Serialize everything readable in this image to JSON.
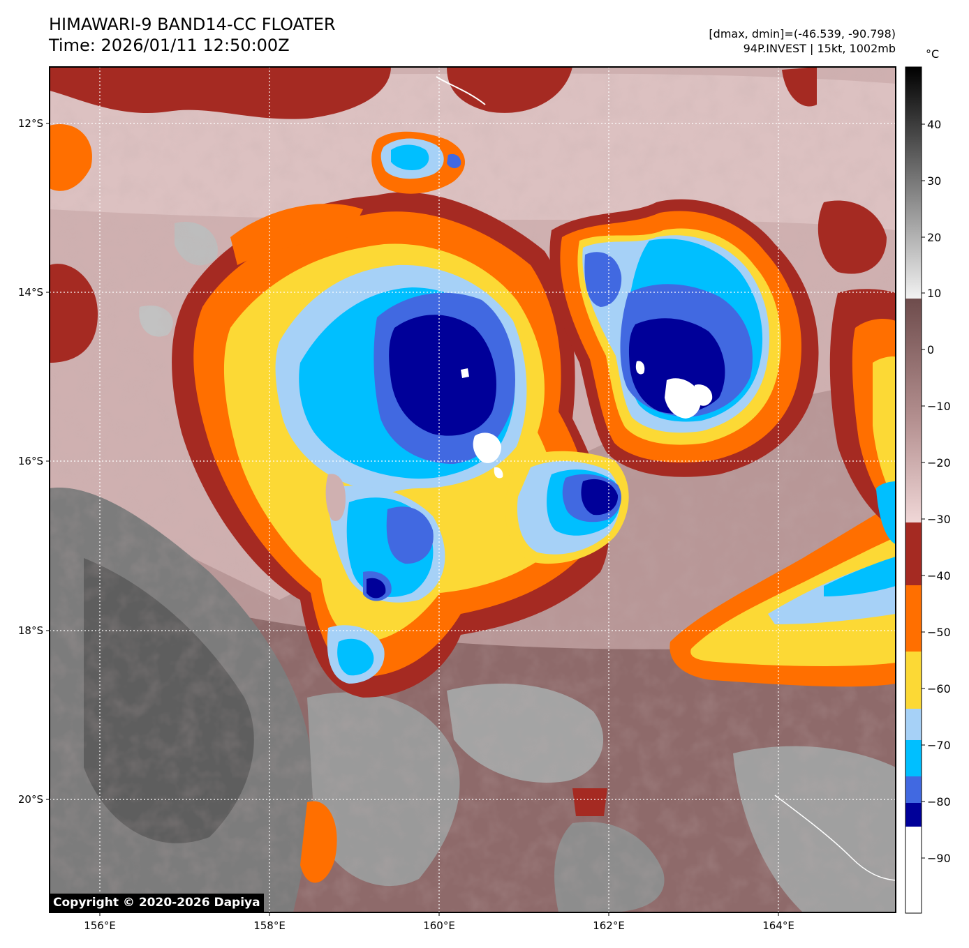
{
  "title": {
    "line1": "HIMAWARI-9 BAND14-CC FLOATER",
    "line2": "Time: 2026/01/11 12:50:00Z"
  },
  "info": {
    "range": "[dmax, dmin]=(-46.539, -90.798)",
    "storm": "94P.INVEST | 15kt, 1002mb"
  },
  "map": {
    "lon_ticks": [
      "156°E",
      "158°E",
      "160°E",
      "162°E",
      "164°E"
    ],
    "lat_ticks": [
      "12°S",
      "14°S",
      "16°S",
      "18°S",
      "20°S"
    ]
  },
  "colorbar": {
    "unit": "°C",
    "ticks": [
      "40",
      "30",
      "20",
      "10",
      "0",
      "−10",
      "−20",
      "−30",
      "−40",
      "−50",
      "−60",
      "−70",
      "−80",
      "−90"
    ],
    "colors": {
      "dark_blue": "#000099",
      "royal_blue": "#4169e1",
      "deep_sky": "#00bfff",
      "light_blue": "#a6d1f7",
      "yellow": "#fcd935",
      "orange": "#ff6f00",
      "dark_red": "#a52a22",
      "pink": "#f2d6d6",
      "mauve": "#8e6666"
    }
  },
  "copyright": "Copyright © 2020-2026 Dapiya"
}
